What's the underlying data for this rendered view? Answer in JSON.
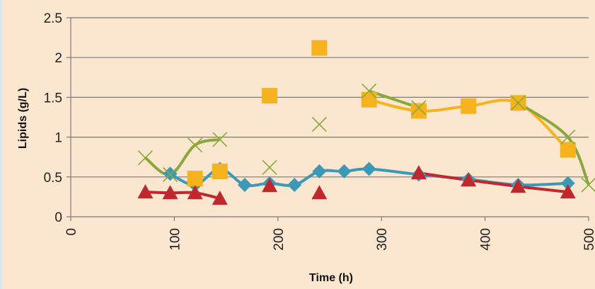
{
  "chart_data": {
    "type": "scatter",
    "xlabel": "Time (h)",
    "ylabel": "Lipids (g/L)",
    "xlim": [
      0,
      500
    ],
    "ylim": [
      0,
      2.5
    ],
    "xticks": [
      "0",
      "100",
      "200",
      "300",
      "400",
      "500"
    ],
    "yticks": [
      "0",
      "0.5",
      "1",
      "1.5",
      "2",
      "2.5"
    ],
    "grid": "horizontal",
    "series": [
      {
        "marker": "diamond",
        "color": "#3d98b8",
        "connect": "line",
        "x": [
          96,
          120,
          144,
          168,
          192,
          216,
          240,
          264,
          288,
          336,
          384,
          432,
          480
        ],
        "y": [
          0.54,
          0.4,
          0.6,
          0.4,
          0.42,
          0.4,
          0.57,
          0.57,
          0.6,
          0.53,
          0.47,
          0.4,
          0.42
        ]
      },
      {
        "marker": "square",
        "color": "#f6b21f",
        "connect_x": [
          288,
          336,
          384,
          432,
          480
        ],
        "x": [
          120,
          144,
          192,
          240,
          288,
          336,
          384,
          432,
          480
        ],
        "y": [
          0.48,
          0.57,
          1.52,
          2.12,
          1.47,
          1.33,
          1.39,
          1.43,
          0.84
        ]
      },
      {
        "marker": "triangle",
        "color": "#c0282d",
        "connect_x": [
          72,
          96,
          120,
          144,
          336,
          384,
          432,
          480
        ],
        "x": [
          72,
          96,
          120,
          144,
          192,
          240,
          336,
          384,
          432,
          480
        ],
        "y": [
          0.31,
          0.3,
          0.3,
          0.23,
          0.39,
          0.3,
          0.55,
          0.46,
          0.38,
          0.31
        ]
      },
      {
        "marker": "x",
        "color": "#8aa83a",
        "connect_x": [
          72,
          96,
          120,
          144,
          288,
          336,
          432,
          480,
          500
        ],
        "x": [
          72,
          96,
          120,
          144,
          192,
          240,
          288,
          336,
          432,
          480,
          500
        ],
        "y": [
          0.74,
          0.53,
          0.9,
          0.97,
          0.62,
          1.16,
          1.58,
          1.37,
          1.43,
          1.0,
          0.4
        ]
      }
    ]
  }
}
